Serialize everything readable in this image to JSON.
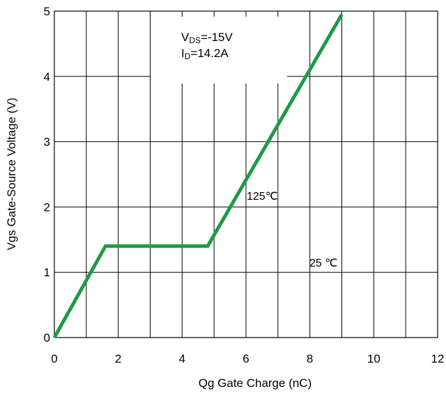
{
  "chart_data": {
    "type": "line",
    "title": "",
    "xlabel": "Qg Gate Charge (nC)",
    "ylabel": "Vgs Gate-Source Voltage (V)",
    "xlim": [
      0,
      12
    ],
    "ylim": [
      0,
      5
    ],
    "x_ticks": [
      "0",
      "2",
      "4",
      "6",
      "8",
      "10",
      "12"
    ],
    "y_ticks": [
      "0",
      "1",
      "2",
      "3",
      "4",
      "5"
    ],
    "grid": true,
    "series": [
      {
        "name": "",
        "color": "#1e9a44",
        "points": [
          {
            "x": 0,
            "y": 0
          },
          {
            "x": 1.6,
            "y": 1.4
          },
          {
            "x": 4.8,
            "y": 1.4
          },
          {
            "x": 9.0,
            "y": 4.95
          }
        ]
      }
    ],
    "annotations": {
      "condition_vds_main": "V",
      "condition_vds_sub": "DS",
      "condition_vds_value": "=-15V",
      "condition_id_main": "I",
      "condition_id_sub": "D",
      "condition_id_value": "=14.2A",
      "temp_high": "125℃",
      "temp_low": "25 ℃"
    }
  }
}
